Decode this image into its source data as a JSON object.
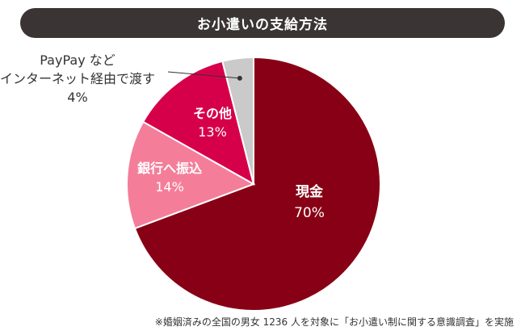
{
  "title": "お小遣いの支給方法",
  "footnote": "※婚姻済みの全国の男女 1236 人を対象に「お小遣い制に関する意識調査」を実施",
  "colors": {
    "cash": "#880015",
    "other": "#d6004a",
    "bank": "#f47e99",
    "paypay": "#cacaca",
    "title_bg": "#3a3534"
  },
  "chart_data": {
    "type": "pie",
    "title": "お小遣いの支給方法",
    "slices": [
      {
        "label": "現金",
        "value": 70,
        "value_label": "70%",
        "color": "#880015",
        "label_color": "#ffffff"
      },
      {
        "label": "銀行へ振込",
        "value": 14,
        "value_label": "14%",
        "color": "#f47e99",
        "label_color": "#ffffff"
      },
      {
        "label": "その他",
        "value": 13,
        "value_label": "13%",
        "color": "#d6004a",
        "label_color": "#ffffff"
      },
      {
        "label": "PayPay など\nインターネット経由で渡す",
        "value": 4,
        "value_label": "4%",
        "color": "#cacaca",
        "label_color": "#333333"
      }
    ],
    "start_angle_deg": 0,
    "direction": "clockwise"
  }
}
